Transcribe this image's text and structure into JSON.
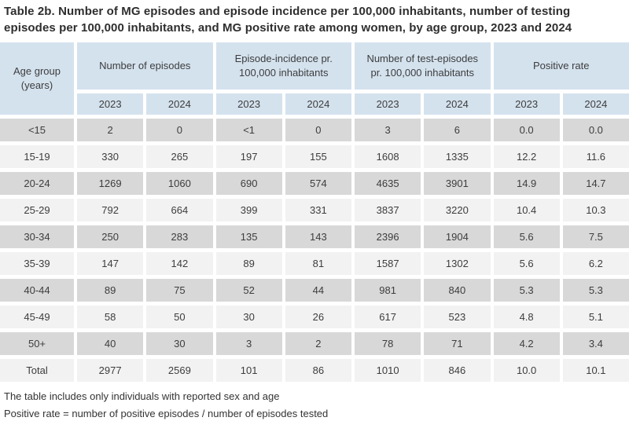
{
  "title": "Table 2b. Number of MG episodes and episode incidence per 100,000 inhabitants, number of testing\nepisodes per 100,000 inhabitants, and MG positive rate among women, by age group, 2023 and 2024",
  "table": {
    "corner_label": "Age group\n(years)",
    "col_groups": [
      {
        "label": "Number of episodes"
      },
      {
        "label": "Episode-incidence pr.\n100,000 inhabitants"
      },
      {
        "label": "Number of test-episodes\npr. 100,000 inhabitants"
      },
      {
        "label": "Positive rate"
      }
    ],
    "year_headers": [
      "2023",
      "2024",
      "2023",
      "2024",
      "2023",
      "2024",
      "2023",
      "2024"
    ],
    "rows": [
      {
        "age": "<15",
        "values": [
          "2",
          "0",
          "<1",
          "0",
          "3",
          "6",
          "0.0",
          "0.0"
        ]
      },
      {
        "age": "15-19",
        "values": [
          "330",
          "265",
          "197",
          "155",
          "1608",
          "1335",
          "12.2",
          "11.6"
        ]
      },
      {
        "age": "20-24",
        "values": [
          "1269",
          "1060",
          "690",
          "574",
          "4635",
          "3901",
          "14.9",
          "14.7"
        ]
      },
      {
        "age": "25-29",
        "values": [
          "792",
          "664",
          "399",
          "331",
          "3837",
          "3220",
          "10.4",
          "10.3"
        ]
      },
      {
        "age": "30-34",
        "values": [
          "250",
          "283",
          "135",
          "143",
          "2396",
          "1904",
          "5.6",
          "7.5"
        ]
      },
      {
        "age": "35-39",
        "values": [
          "147",
          "142",
          "89",
          "81",
          "1587",
          "1302",
          "5.6",
          "6.2"
        ]
      },
      {
        "age": "40-44",
        "values": [
          "89",
          "75",
          "52",
          "44",
          "981",
          "840",
          "5.3",
          "5.3"
        ]
      },
      {
        "age": "45-49",
        "values": [
          "58",
          "50",
          "30",
          "26",
          "617",
          "523",
          "4.8",
          "5.1"
        ]
      },
      {
        "age": "50+",
        "values": [
          "40",
          "30",
          "3",
          "2",
          "78",
          "71",
          "4.2",
          "3.4"
        ]
      },
      {
        "age": "Total",
        "values": [
          "2977",
          "2569",
          "101",
          "86",
          "1010",
          "846",
          "10.0",
          "10.1"
        ]
      }
    ],
    "footnotes": [
      "The table includes only individuals with reported sex and age",
      "Positive rate = number of positive episodes / number of episodes tested"
    ]
  },
  "colors": {
    "header_bg": "#d4e2ee",
    "row_dark": "#d8d8d8",
    "row_light": "#f2f2f2",
    "text": "#3d3d3d",
    "background": "#ffffff"
  }
}
